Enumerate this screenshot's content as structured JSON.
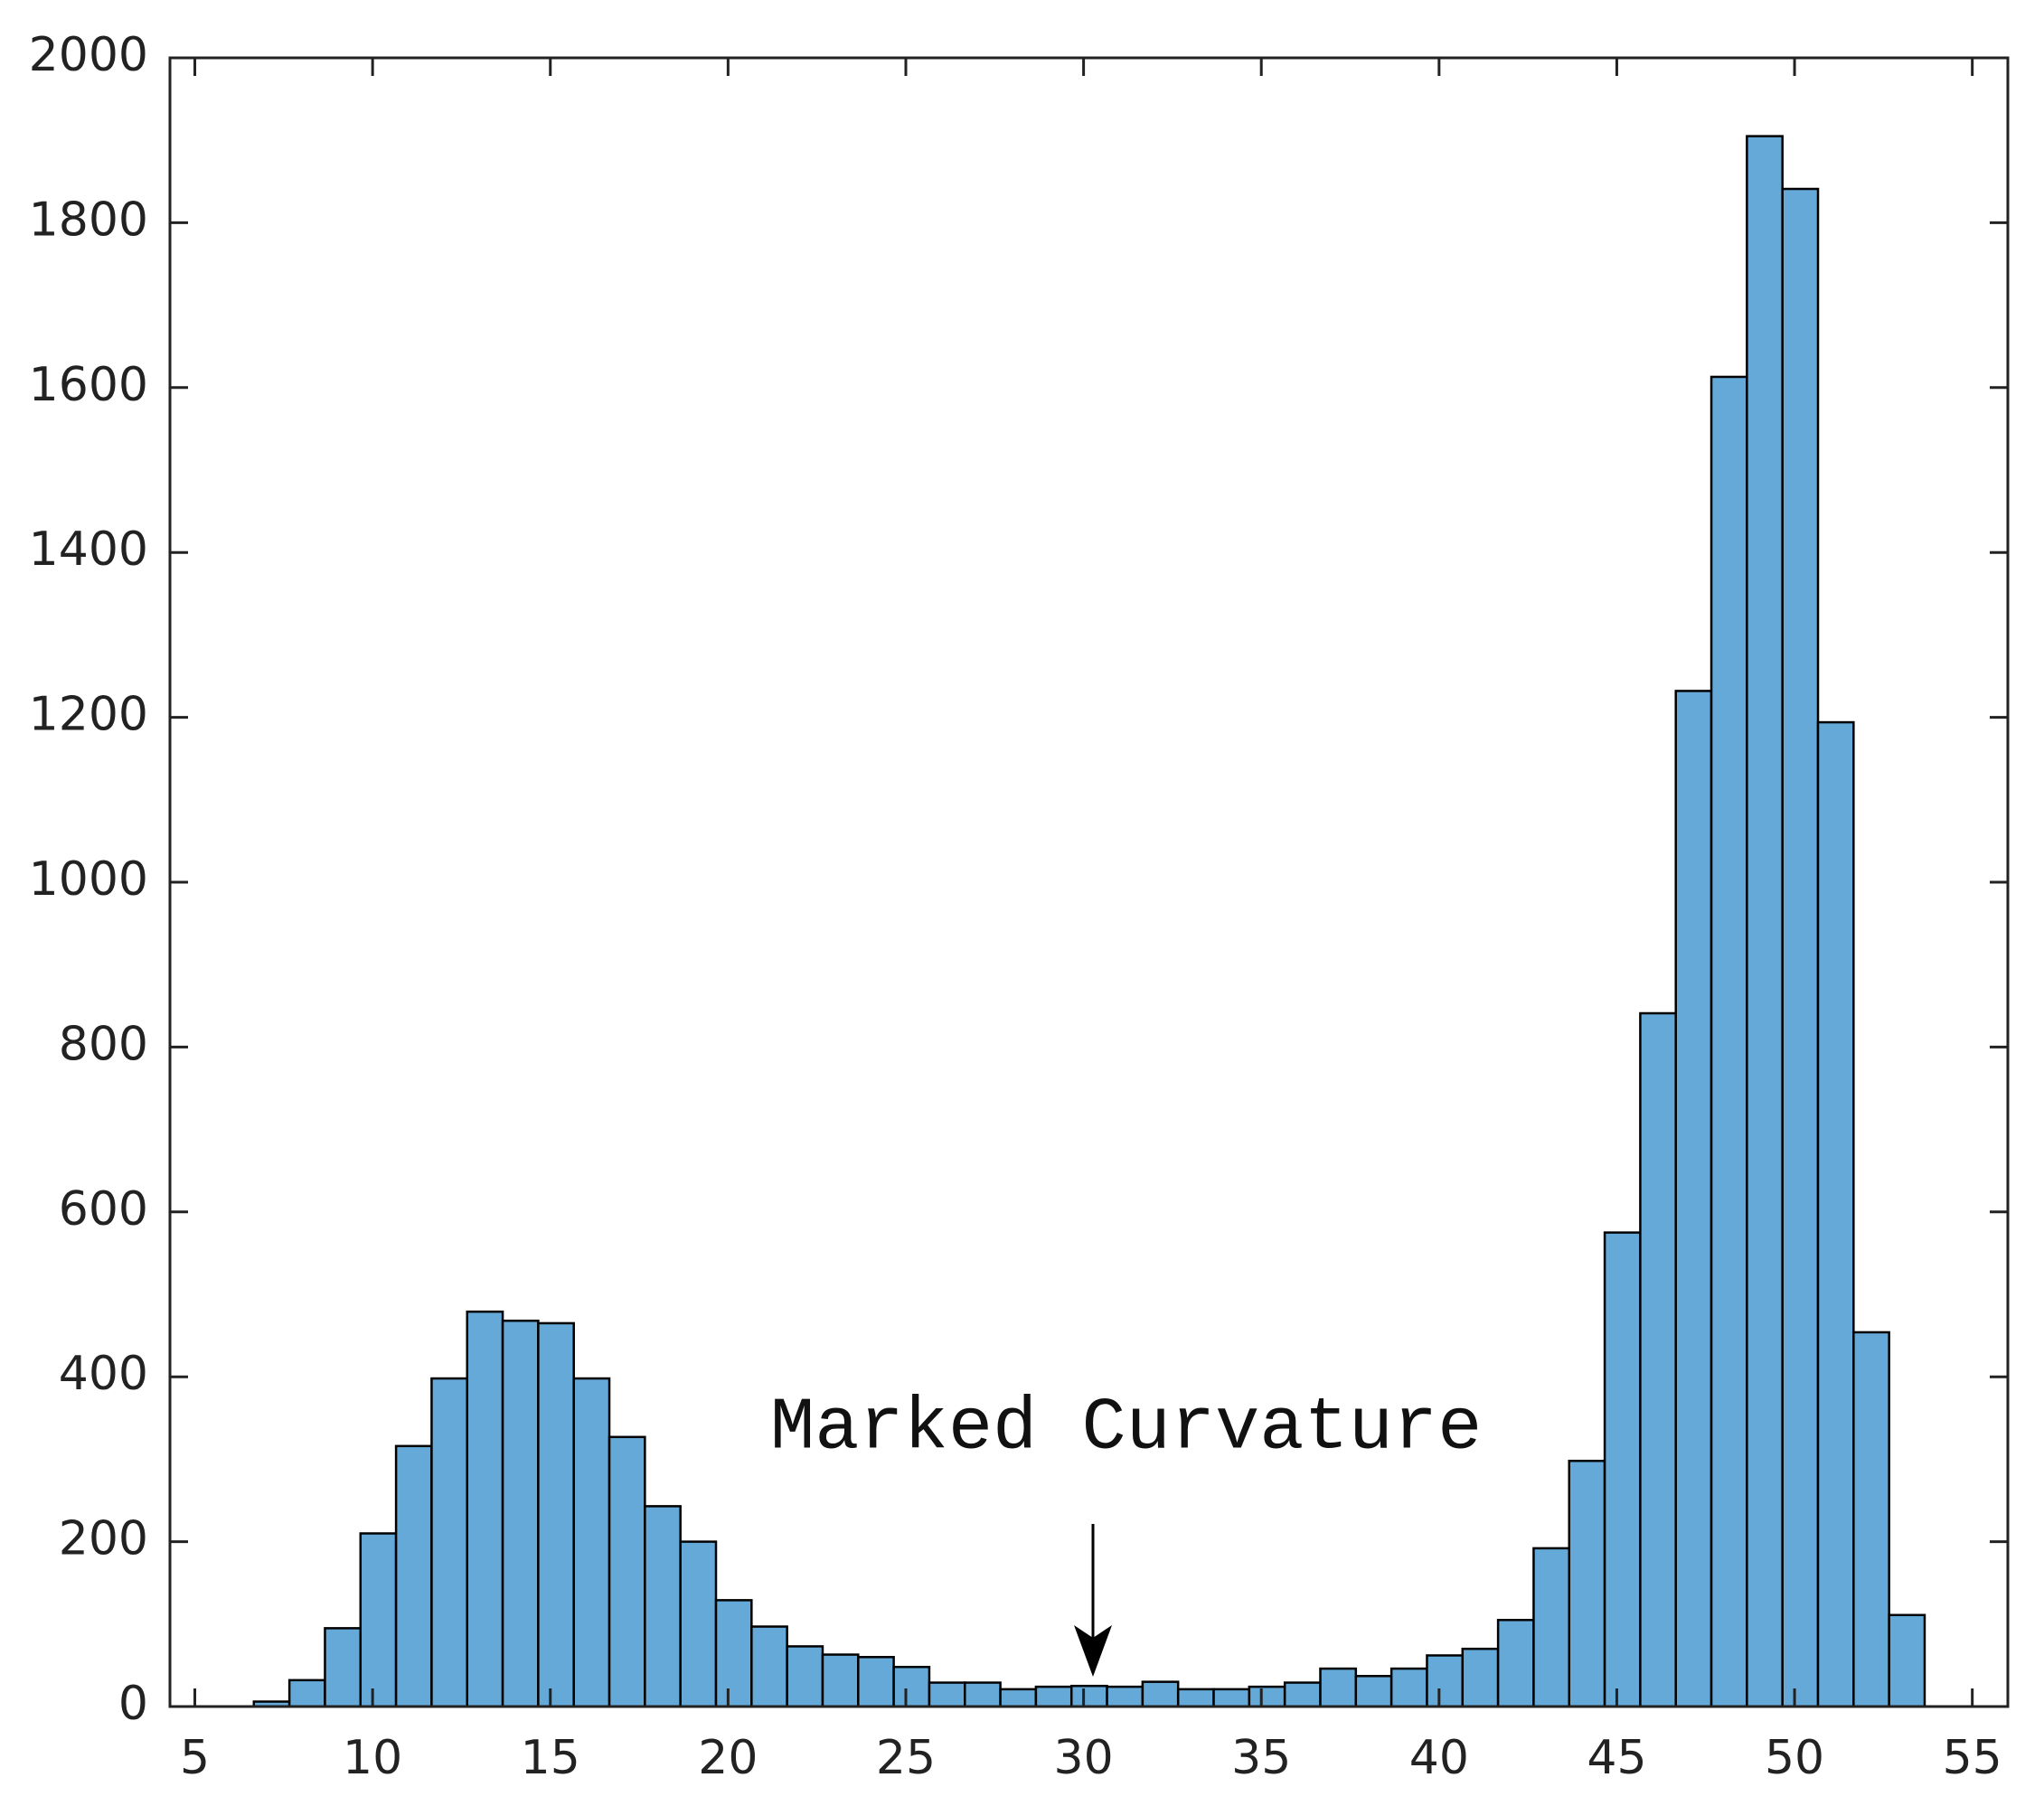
{
  "chart_data": {
    "type": "histogram",
    "bins": [
      6.66,
      7.66,
      8.66,
      9.66,
      10.66,
      11.66,
      12.66,
      13.66,
      14.66,
      15.66,
      16.66,
      17.66,
      18.66,
      19.66,
      20.66,
      21.66,
      22.66,
      23.66,
      24.66,
      25.66,
      26.66,
      27.66,
      28.66,
      29.66,
      30.66,
      31.66,
      32.66,
      33.66,
      34.66,
      35.66,
      36.66,
      37.66,
      38.66,
      39.66,
      40.66,
      41.66,
      42.66,
      43.66,
      44.66,
      45.66,
      46.66,
      47.66,
      48.66,
      49.66,
      50.66,
      51.66,
      52.66,
      53.66
    ],
    "values": [
      6,
      32,
      95,
      210,
      316,
      398,
      479,
      468,
      465,
      398,
      327,
      243,
      200,
      129,
      97,
      73,
      63,
      60,
      48,
      29,
      29,
      21,
      24,
      25,
      24,
      30,
      21,
      21,
      24,
      29,
      46,
      37,
      46,
      62,
      70,
      105,
      192,
      298,
      575,
      841,
      1232,
      1613,
      1905,
      1841,
      1194,
      454,
      111
    ],
    "color": "#64a9d8",
    "xlim": [
      4.3,
      56
    ],
    "xticks": [
      5,
      10,
      15,
      20,
      25,
      30,
      35,
      40,
      45,
      50,
      55
    ],
    "ylim": [
      0,
      2000
    ],
    "yticks": [
      0,
      200,
      400,
      600,
      800,
      1000,
      1200,
      1400,
      1600,
      1800,
      2000
    ],
    "annotation": "Marked Curvature"
  }
}
